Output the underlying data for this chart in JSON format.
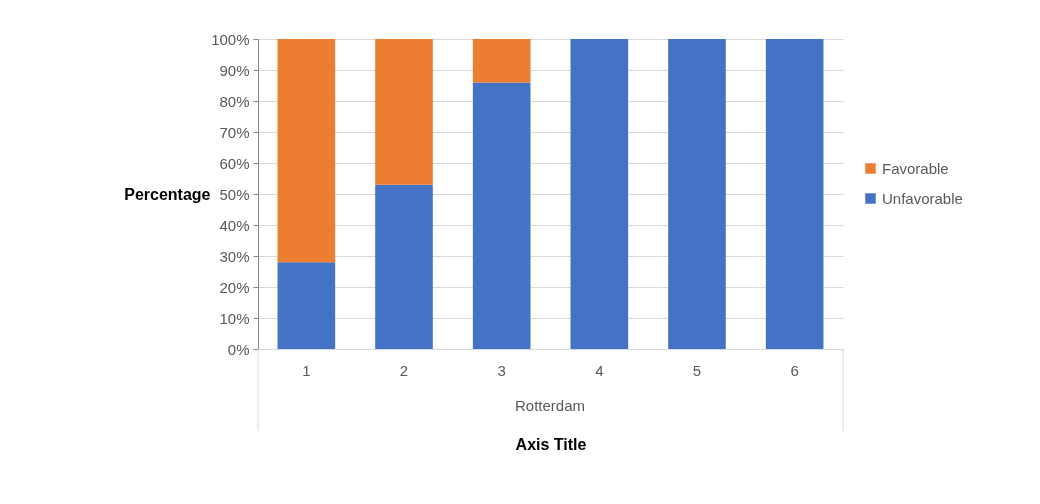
{
  "chart_data": {
    "type": "bar",
    "stacked": true,
    "categories": [
      "1",
      "2",
      "3",
      "4",
      "5",
      "6"
    ],
    "series": [
      {
        "name": "Unfavorable",
        "color": "#4472c4",
        "values": [
          28,
          53,
          86,
          100,
          100,
          100
        ]
      },
      {
        "name": "Favorable",
        "color": "#ed7d31",
        "values": [
          72,
          47,
          14,
          0,
          0,
          0
        ]
      }
    ],
    "ylabel": "Percentage",
    "xlabel": "Axis Title",
    "annotations": [
      "Rotterdam"
    ],
    "ylim": [
      0,
      100
    ],
    "yticks": [
      {
        "value": 0,
        "label": "0%"
      },
      {
        "value": 10,
        "label": "10%"
      },
      {
        "value": 20,
        "label": "20%"
      },
      {
        "value": 30,
        "label": "30%"
      },
      {
        "value": 40,
        "label": "40%"
      },
      {
        "value": 50,
        "label": "50%"
      },
      {
        "value": 60,
        "label": "60%"
      },
      {
        "value": 70,
        "label": "70%"
      },
      {
        "value": 80,
        "label": "80%"
      },
      {
        "value": 90,
        "label": "90%"
      },
      {
        "value": 100,
        "label": "100%"
      }
    ],
    "grid": true,
    "legend": "right"
  }
}
